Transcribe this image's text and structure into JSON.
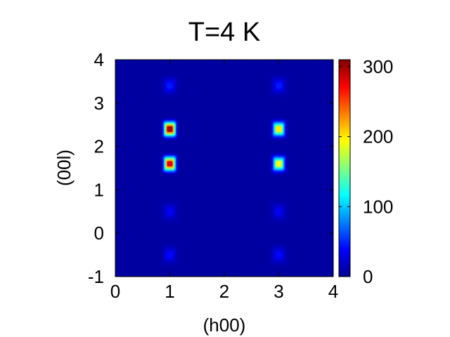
{
  "chart_data": {
    "type": "heatmap",
    "title": "T=4 K",
    "xlabel": "(h00)",
    "ylabel": "(00l)",
    "xlim": [
      0,
      4
    ],
    "ylim": [
      -1,
      4
    ],
    "x_ticks": [
      "0",
      "1",
      "2",
      "3",
      "4"
    ],
    "y_ticks": [
      "-1",
      "0",
      "1",
      "2",
      "3",
      "4"
    ],
    "colorbar": {
      "colormap": "jet",
      "range": [
        0,
        310
      ],
      "ticks": [
        "0",
        "100",
        "200",
        "300"
      ]
    },
    "background_color": "#0000a0",
    "peaks": [
      {
        "h": 1,
        "l": 2.4,
        "intensity": 300
      },
      {
        "h": 1,
        "l": 1.6,
        "intensity": 280
      },
      {
        "h": 3,
        "l": 2.4,
        "intensity": 200
      },
      {
        "h": 3,
        "l": 1.6,
        "intensity": 190
      },
      {
        "h": 1,
        "l": 3.4,
        "intensity": 45
      },
      {
        "h": 3,
        "l": 3.4,
        "intensity": 45
      },
      {
        "h": 1,
        "l": 0.5,
        "intensity": 35
      },
      {
        "h": 3,
        "l": 0.5,
        "intensity": 35
      },
      {
        "h": 1,
        "l": -0.5,
        "intensity": 40
      },
      {
        "h": 3,
        "l": -0.5,
        "intensity": 40
      }
    ]
  }
}
